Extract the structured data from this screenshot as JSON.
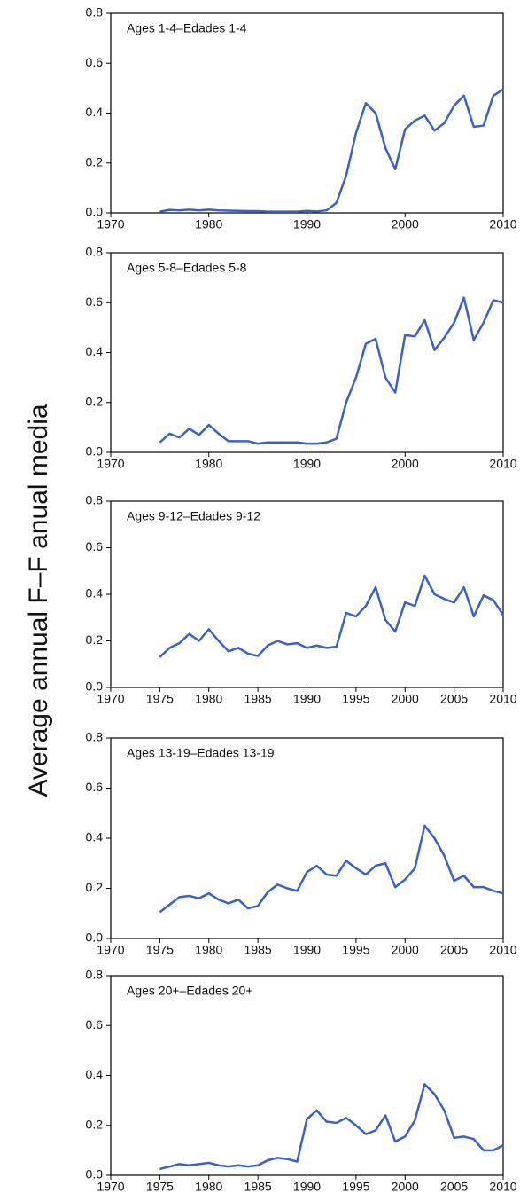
{
  "ylabel": "Average annual F–F anual media",
  "chart_data": [
    {
      "type": "line",
      "title": "Ages 1-4–Edades 1-4",
      "xlim": [
        1970,
        2010
      ],
      "xticks": [
        1970,
        1980,
        1990,
        2000,
        2010
      ],
      "ylim": [
        0,
        0.8
      ],
      "yticks": [
        {
          "value": 0,
          "label": "0.0"
        },
        0.2,
        0.4,
        0.6,
        0.8
      ],
      "x": [
        1975,
        1976,
        1977,
        1978,
        1979,
        1980,
        1981,
        1982,
        1983,
        1984,
        1985,
        1986,
        1987,
        1988,
        1989,
        1990,
        1991,
        1992,
        1993,
        1994,
        1995,
        1996,
        1997,
        1998,
        1999,
        2000,
        2001,
        2002,
        2003,
        2004,
        2005,
        2006,
        2007,
        2008,
        2009,
        2010
      ],
      "series": [
        {
          "color": "#3a60d0",
          "values": [
            0.005,
            0.012,
            0.01,
            0.013,
            0.01,
            0.013,
            0.01,
            0.009,
            0.008,
            0.007,
            0.007,
            0.005,
            0.005,
            0.005,
            0.005,
            0.008,
            0.006,
            0.01,
            0.04,
            0.15,
            0.32,
            0.44,
            0.4,
            0.26,
            0.175,
            0.335,
            0.37,
            0.39,
            0.33,
            0.36,
            0.43,
            0.47,
            0.345,
            0.35,
            0.47,
            0.495
          ]
        }
      ]
    },
    {
      "type": "line",
      "title": "Ages 5-8–Edades 5-8",
      "xlim": [
        1970,
        2010
      ],
      "xticks": [
        1970,
        1980,
        1990,
        2000,
        2010
      ],
      "ylim": [
        0,
        0.8
      ],
      "yticks": [
        {
          "value": 0,
          "label": "0.0"
        },
        0.2,
        0.4,
        0.6,
        0.8
      ],
      "x": [
        1975,
        1976,
        1977,
        1978,
        1979,
        1980,
        1981,
        1982,
        1983,
        1984,
        1985,
        1986,
        1987,
        1988,
        1989,
        1990,
        1991,
        1992,
        1993,
        1994,
        1995,
        1996,
        1997,
        1998,
        1999,
        2000,
        2001,
        2002,
        2003,
        2004,
        2005,
        2006,
        2007,
        2008,
        2009,
        2010
      ],
      "series": [
        {
          "color": "#3a60d0",
          "values": [
            0.04,
            0.075,
            0.06,
            0.095,
            0.07,
            0.11,
            0.075,
            0.045,
            0.045,
            0.045,
            0.035,
            0.04,
            0.04,
            0.04,
            0.04,
            0.035,
            0.035,
            0.04,
            0.055,
            0.2,
            0.3,
            0.435,
            0.455,
            0.3,
            0.24,
            0.47,
            0.465,
            0.53,
            0.41,
            0.46,
            0.52,
            0.62,
            0.45,
            0.52,
            0.61,
            0.6
          ]
        }
      ]
    },
    {
      "type": "line",
      "title": "Ages 9-12–Edades 9-12",
      "xlim": [
        1970,
        2010
      ],
      "xticks": [
        1970,
        1975,
        1980,
        1985,
        1990,
        1995,
        2000,
        2005,
        2010
      ],
      "ylim": [
        0,
        0.8
      ],
      "yticks": [
        {
          "value": 0,
          "label": "0.0"
        },
        0.2,
        0.4,
        0.6,
        0.8
      ],
      "x": [
        1975,
        1976,
        1977,
        1978,
        1979,
        1980,
        1981,
        1982,
        1983,
        1984,
        1985,
        1986,
        1987,
        1988,
        1989,
        1990,
        1991,
        1992,
        1993,
        1994,
        1995,
        1996,
        1997,
        1998,
        1999,
        2000,
        2001,
        2002,
        2003,
        2004,
        2005,
        2006,
        2007,
        2008,
        2009,
        2010
      ],
      "series": [
        {
          "color": "#3a60d0",
          "values": [
            0.13,
            0.17,
            0.19,
            0.23,
            0.2,
            0.25,
            0.2,
            0.155,
            0.17,
            0.145,
            0.135,
            0.18,
            0.2,
            0.185,
            0.19,
            0.17,
            0.18,
            0.17,
            0.175,
            0.32,
            0.305,
            0.35,
            0.43,
            0.29,
            0.24,
            0.365,
            0.35,
            0.48,
            0.4,
            0.38,
            0.365,
            0.43,
            0.305,
            0.395,
            0.375,
            0.31
          ]
        }
      ]
    },
    {
      "type": "line",
      "title": "Ages 13-19–Edades 13-19",
      "xlim": [
        1970,
        2010
      ],
      "xticks": [
        1970,
        1975,
        1980,
        1985,
        1990,
        1995,
        2000,
        2005,
        2010
      ],
      "ylim": [
        0,
        0.8
      ],
      "yticks": [
        {
          "value": 0,
          "label": "0.0"
        },
        0.2,
        0.4,
        0.6,
        0.8
      ],
      "x": [
        1975,
        1976,
        1977,
        1978,
        1979,
        1980,
        1981,
        1982,
        1983,
        1984,
        1985,
        1986,
        1987,
        1988,
        1989,
        1990,
        1991,
        1992,
        1993,
        1994,
        1995,
        1996,
        1997,
        1998,
        1999,
        2000,
        2001,
        2002,
        2003,
        2004,
        2005,
        2006,
        2007,
        2008,
        2009,
        2010
      ],
      "series": [
        {
          "color": "#3a60d0",
          "values": [
            0.105,
            0.135,
            0.165,
            0.17,
            0.16,
            0.18,
            0.155,
            0.14,
            0.155,
            0.12,
            0.13,
            0.185,
            0.215,
            0.2,
            0.19,
            0.265,
            0.29,
            0.255,
            0.25,
            0.31,
            0.28,
            0.255,
            0.29,
            0.3,
            0.205,
            0.235,
            0.28,
            0.45,
            0.4,
            0.33,
            0.23,
            0.25,
            0.205,
            0.205,
            0.19,
            0.18
          ]
        }
      ]
    },
    {
      "type": "line",
      "title": "Ages 20+–Edades 20+",
      "xlim": [
        1970,
        2010
      ],
      "xticks": [
        1970,
        1975,
        1980,
        1985,
        1990,
        1995,
        2000,
        2005,
        2010
      ],
      "ylim": [
        0,
        0.8
      ],
      "yticks": [
        {
          "value": 0,
          "label": "0.0"
        },
        0.2,
        0.4,
        0.6,
        0.8
      ],
      "x": [
        1975,
        1976,
        1977,
        1978,
        1979,
        1980,
        1981,
        1982,
        1983,
        1984,
        1985,
        1986,
        1987,
        1988,
        1989,
        1990,
        1991,
        1992,
        1993,
        1994,
        1995,
        1996,
        1997,
        1998,
        1999,
        2000,
        2001,
        2002,
        2003,
        2004,
        2005,
        2006,
        2007,
        2008,
        2009,
        2010
      ],
      "series": [
        {
          "color": "#3a60d0",
          "values": [
            0.025,
            0.035,
            0.045,
            0.04,
            0.045,
            0.05,
            0.04,
            0.035,
            0.04,
            0.035,
            0.04,
            0.06,
            0.07,
            0.065,
            0.055,
            0.225,
            0.26,
            0.215,
            0.21,
            0.23,
            0.2,
            0.165,
            0.18,
            0.24,
            0.135,
            0.155,
            0.22,
            0.365,
            0.325,
            0.26,
            0.15,
            0.155,
            0.145,
            0.1,
            0.1,
            0.12
          ]
        }
      ]
    }
  ]
}
